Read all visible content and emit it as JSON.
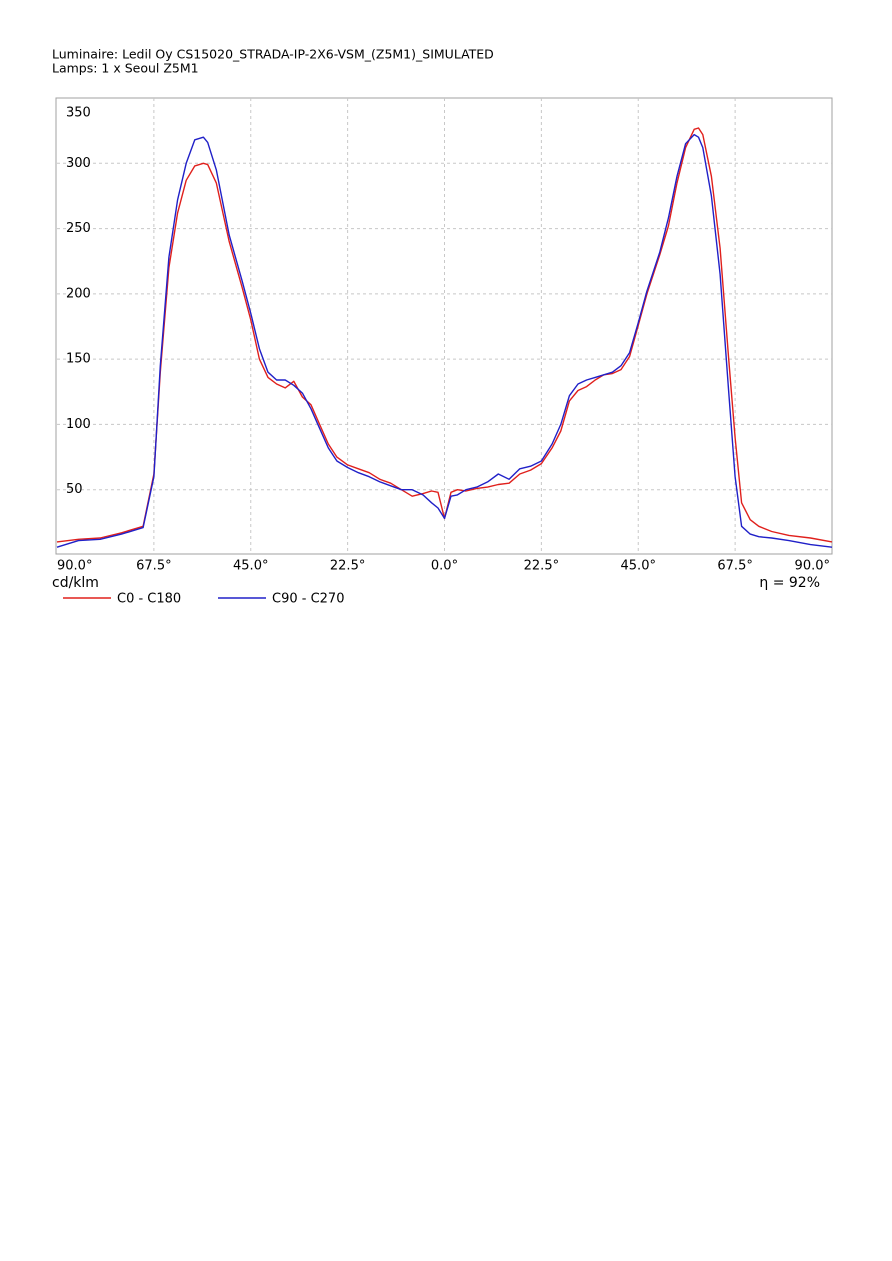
{
  "chart_data": {
    "type": "line",
    "title": "Luminaire: Ledil Oy CS15020_STRADA-IP-2X6-VSM_(Z5M1)_SIMULATED",
    "subtitle": "Lamps: 1 x Seoul Z5M1",
    "y_label": "cd/klm",
    "annotation": "η = 92%",
    "x": [
      -90,
      -85,
      -80,
      -75,
      -70,
      -67.5,
      -66,
      -64,
      -62,
      -60,
      -58,
      -56,
      -55,
      -53,
      -50,
      -47,
      -45,
      -43,
      -41,
      -39,
      -37,
      -35,
      -33,
      -31,
      -29,
      -27,
      -25,
      -22.5,
      -20,
      -17.5,
      -15,
      -12.5,
      -10,
      -7.5,
      -5,
      -3,
      -1.5,
      0,
      1.5,
      3,
      5,
      7.5,
      10,
      12.5,
      15,
      17.5,
      20,
      22.5,
      25,
      27,
      29,
      31,
      33,
      35,
      37,
      39,
      41,
      43,
      45,
      47,
      50,
      52,
      54,
      56,
      58,
      59,
      60,
      62,
      64,
      66,
      67.5,
      69,
      71,
      73,
      76,
      80,
      85,
      90
    ],
    "series": [
      {
        "name": "C0 - C180",
        "color": "#e0201c",
        "values": [
          10,
          12,
          13,
          17,
          22,
          62,
          140,
          220,
          262,
          287,
          298,
          300,
          299,
          285,
          240,
          205,
          180,
          150,
          136,
          131,
          128,
          133,
          121,
          115,
          100,
          85,
          75,
          69,
          66,
          63,
          58,
          55,
          50,
          45,
          47,
          49,
          48,
          28,
          48,
          50,
          49,
          51,
          52,
          54,
          55,
          62,
          65,
          70,
          82,
          95,
          118,
          126,
          129,
          134,
          138,
          139,
          142,
          152,
          176,
          200,
          230,
          252,
          285,
          312,
          326,
          327,
          322,
          290,
          235,
          150,
          90,
          40,
          27,
          22,
          18,
          15,
          13,
          10
        ]
      },
      {
        "name": "C90 - C270",
        "color": "#2020c8",
        "values": [
          6,
          11,
          12,
          16,
          21,
          60,
          145,
          228,
          272,
          300,
          318,
          320,
          316,
          295,
          245,
          210,
          185,
          158,
          140,
          134,
          134,
          130,
          124,
          112,
          97,
          82,
          72,
          67,
          63,
          60,
          56,
          53,
          50,
          50,
          46,
          40,
          36,
          28,
          45,
          46,
          50,
          52,
          56,
          62,
          58,
          66,
          68,
          72,
          85,
          100,
          122,
          131,
          134,
          136,
          138,
          140,
          145,
          155,
          178,
          202,
          232,
          258,
          290,
          315,
          322,
          320,
          312,
          275,
          215,
          125,
          60,
          22,
          16,
          14,
          13,
          11,
          8,
          6
        ]
      }
    ],
    "xlim": [
      -90,
      90
    ],
    "xticks": [
      {
        "value": -90,
        "label": "90.0°"
      },
      {
        "value": -67.5,
        "label": "67.5°"
      },
      {
        "value": -45,
        "label": "45.0°"
      },
      {
        "value": -22.5,
        "label": "22.5°"
      },
      {
        "value": 0,
        "label": "0.0°"
      },
      {
        "value": 22.5,
        "label": "22.5°"
      },
      {
        "value": 45,
        "label": "45.0°"
      },
      {
        "value": 67.5,
        "label": "67.5°"
      },
      {
        "value": 90,
        "label": "90.0°"
      }
    ],
    "ylim": [
      0,
      350
    ],
    "yticks": [
      50,
      100,
      150,
      200,
      250,
      300,
      350
    ],
    "grid": true
  }
}
